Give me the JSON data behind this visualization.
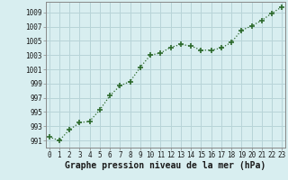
{
  "x": [
    0,
    1,
    2,
    3,
    4,
    5,
    6,
    7,
    8,
    9,
    10,
    11,
    12,
    13,
    14,
    15,
    16,
    17,
    18,
    19,
    20,
    21,
    22,
    23
  ],
  "y": [
    991.5,
    991.0,
    992.5,
    993.5,
    993.7,
    995.3,
    997.3,
    998.7,
    999.3,
    1001.3,
    1003.0,
    1003.3,
    1004.1,
    1004.5,
    1004.3,
    1003.7,
    1003.7,
    1004.0,
    1004.8,
    1006.5,
    1007.1,
    1007.9,
    1008.9,
    1009.8
  ],
  "line_color": "#2d6a2d",
  "marker": "+",
  "marker_size": 4,
  "bg_color": "#d8eef0",
  "grid_color": "#b8d4d8",
  "xlabel": "Graphe pression niveau de la mer (hPa)",
  "xlabel_fontsize": 7,
  "xlabel_bold": true,
  "ylabel_ticks": [
    991,
    993,
    995,
    997,
    999,
    1001,
    1003,
    1005,
    1007,
    1009
  ],
  "ylim": [
    990.0,
    1010.5
  ],
  "xlim": [
    -0.3,
    23.3
  ],
  "xticks": [
    0,
    1,
    2,
    3,
    4,
    5,
    6,
    7,
    8,
    9,
    10,
    11,
    12,
    13,
    14,
    15,
    16,
    17,
    18,
    19,
    20,
    21,
    22,
    23
  ],
  "tick_fontsize": 5.5,
  "spine_color": "#888888",
  "line_width": 0.9
}
